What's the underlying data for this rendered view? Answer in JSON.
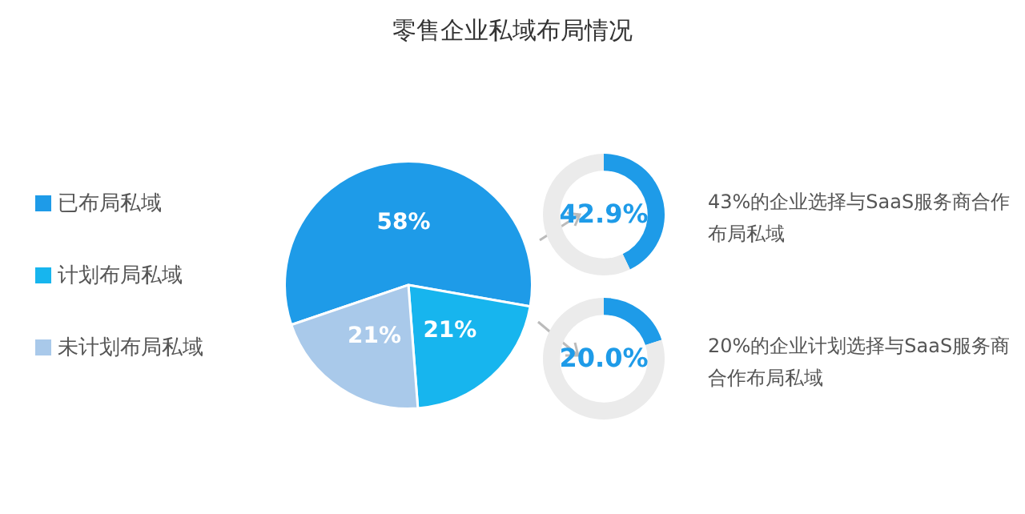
{
  "chart_data": [
    {
      "type": "pie",
      "title": "零售企业私域布局情况",
      "categories": [
        "已布局私域",
        "计划布局私域",
        "未计划布局私域"
      ],
      "values": [
        58,
        21,
        21
      ],
      "colors": [
        "#1e9be8",
        "#17b5ee",
        "#a9c9ea"
      ],
      "value_labels": [
        "58%",
        "21%",
        "21%"
      ],
      "legend": "left"
    },
    {
      "type": "donut",
      "categories": [
        null,
        null
      ],
      "values": [
        42.9,
        57.1
      ],
      "colors": [
        "#1e9be8",
        "#ebebeb"
      ],
      "annotations": [
        "42.9%",
        "43%的企业选择与SaaS服务商合作布局私域"
      ]
    },
    {
      "type": "donut",
      "categories": [
        null,
        null
      ],
      "values": [
        20.0,
        80.0
      ],
      "colors": [
        "#1e9be8",
        "#ebebeb"
      ],
      "annotations": [
        "20.0%",
        "20%的企业计划选择与SaaS服务商合作布局私域"
      ]
    }
  ]
}
